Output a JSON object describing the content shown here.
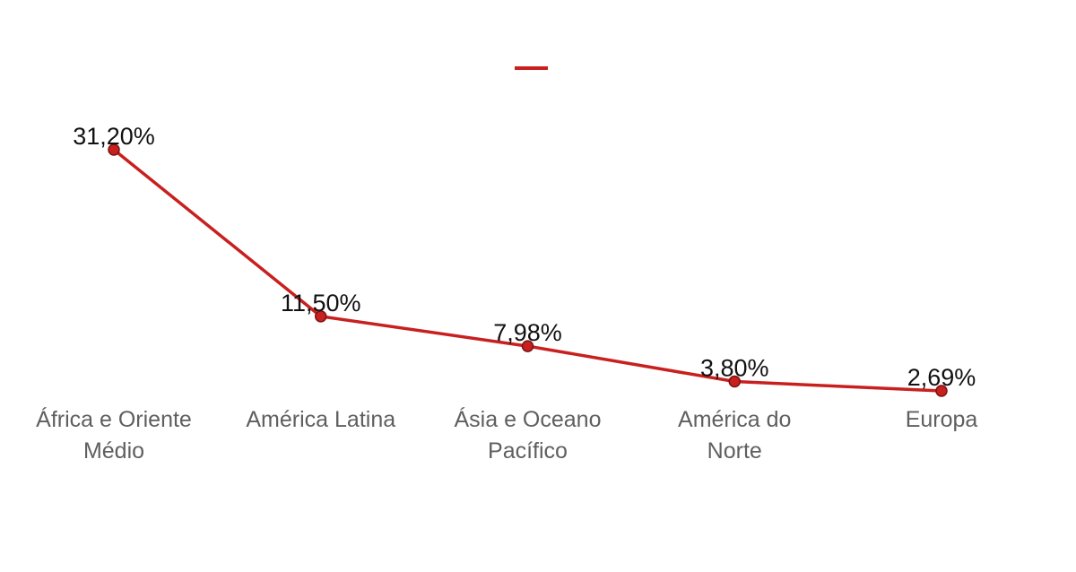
{
  "chart_data": {
    "type": "line",
    "categories": [
      [
        "África e Oriente",
        "Médio"
      ],
      [
        "América Latina"
      ],
      [
        "Ásia e Oceano",
        "Pacífico"
      ],
      [
        "América do",
        "Norte"
      ],
      [
        "Europa"
      ]
    ],
    "values": [
      31.2,
      11.5,
      7.98,
      3.8,
      2.69
    ],
    "data_labels": [
      "31,20%",
      "11,50%",
      "7,98%",
      "3,80%",
      "2,69%"
    ],
    "series": [
      {
        "values": [
          31.2,
          11.5,
          7.98,
          3.8,
          2.69
        ],
        "color": "#c8201e"
      }
    ],
    "legend": {
      "position": "top-center",
      "entries": [
        ""
      ]
    },
    "grid": false,
    "title": "",
    "xlabel": "",
    "ylabel": ""
  }
}
